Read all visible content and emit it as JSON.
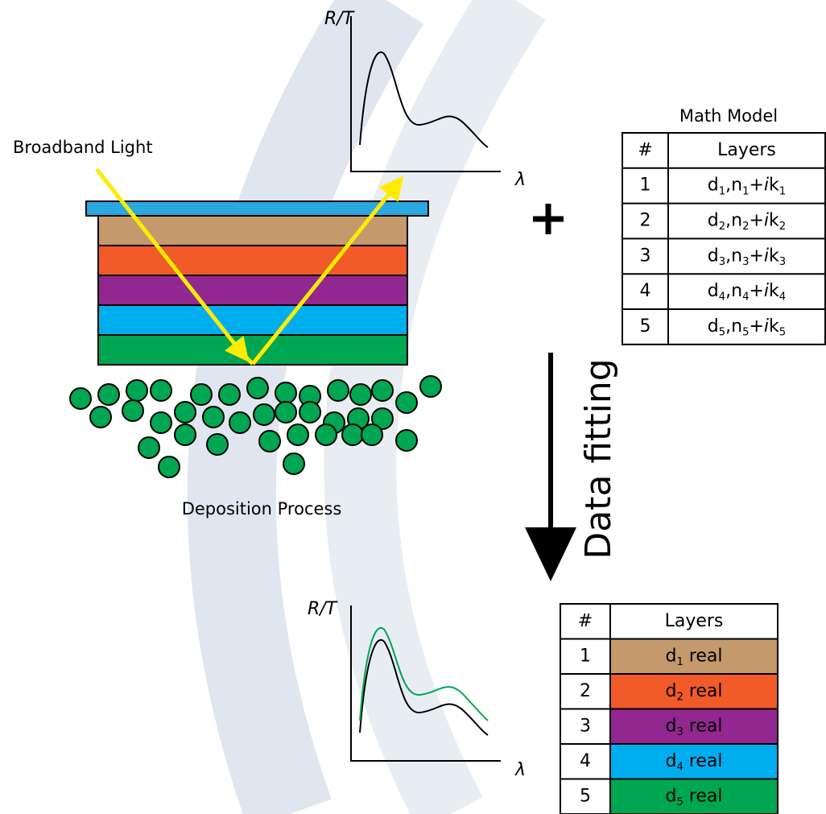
{
  "labels": {
    "light": "Broadband Light",
    "process": "Deposition Process",
    "fitting": "Data fitting"
  },
  "top_graph": {
    "y_label": "R/T",
    "x_label": "λ"
  },
  "bottom_graph": {
    "y_label": "R/T",
    "x_label": "λ"
  },
  "stack": {
    "cap_color": "#2aa8e0",
    "layer_colors": [
      "#c49a6c",
      "#f15a29",
      "#92278f",
      "#00aeef",
      "#00a651"
    ]
  },
  "math_model": {
    "title": "Math Model",
    "header": [
      "#",
      "Layers"
    ],
    "rows": [
      {
        "index": "1",
        "layers": [
          {
            "text": "d"
          },
          {
            "text": "1",
            "sub": true
          },
          {
            "text": ",n"
          },
          {
            "text": "1",
            "sub": true
          },
          {
            "text": "+"
          },
          {
            "text": "i",
            "italic": true
          },
          {
            "text": "k"
          },
          {
            "text": "1",
            "sub": true
          }
        ]
      },
      {
        "index": "2",
        "layers": [
          {
            "text": "d"
          },
          {
            "text": "2",
            "sub": true
          },
          {
            "text": ",n"
          },
          {
            "text": "2",
            "sub": true
          },
          {
            "text": "+"
          },
          {
            "text": "i",
            "italic": true
          },
          {
            "text": "k"
          },
          {
            "text": "2",
            "sub": true
          }
        ]
      },
      {
        "index": "3",
        "layers": [
          {
            "text": "d"
          },
          {
            "text": "3",
            "sub": true
          },
          {
            "text": ",n"
          },
          {
            "text": "3",
            "sub": true
          },
          {
            "text": "+"
          },
          {
            "text": "i",
            "italic": true
          },
          {
            "text": "k"
          },
          {
            "text": "3",
            "sub": true
          }
        ]
      },
      {
        "index": "4",
        "layers": [
          {
            "text": "d"
          },
          {
            "text": "4",
            "sub": true
          },
          {
            "text": ",n"
          },
          {
            "text": "4",
            "sub": true
          },
          {
            "text": "+"
          },
          {
            "text": "i",
            "italic": true
          },
          {
            "text": "k"
          },
          {
            "text": "4",
            "sub": true
          }
        ]
      },
      {
        "index": "5",
        "layers": [
          {
            "text": "d"
          },
          {
            "text": "5",
            "sub": true
          },
          {
            "text": ",n"
          },
          {
            "text": "5",
            "sub": true
          },
          {
            "text": "+"
          },
          {
            "text": "i",
            "italic": true
          },
          {
            "text": "k"
          },
          {
            "text": "5",
            "sub": true
          }
        ]
      }
    ]
  },
  "result": {
    "header": [
      "#",
      "Layers"
    ],
    "rows": [
      {
        "index": "1",
        "color": "#c49a6c",
        "layers": [
          {
            "text": "d"
          },
          {
            "text": "1",
            "sub": true
          },
          {
            "text": " real"
          }
        ]
      },
      {
        "index": "2",
        "color": "#f15a29",
        "layers": [
          {
            "text": "d"
          },
          {
            "text": "2",
            "sub": true
          },
          {
            "text": " real"
          }
        ]
      },
      {
        "index": "3",
        "color": "#92278f",
        "layers": [
          {
            "text": "d"
          },
          {
            "text": "3",
            "sub": true
          },
          {
            "text": " real"
          }
        ]
      },
      {
        "index": "4",
        "color": "#00aeef",
        "layers": [
          {
            "text": "d"
          },
          {
            "text": "4",
            "sub": true
          },
          {
            "text": " real"
          }
        ]
      },
      {
        "index": "5",
        "color": "#00a651",
        "layers": [
          {
            "text": "d"
          },
          {
            "text": "5",
            "sub": true
          },
          {
            "text": " real"
          }
        ]
      }
    ]
  }
}
